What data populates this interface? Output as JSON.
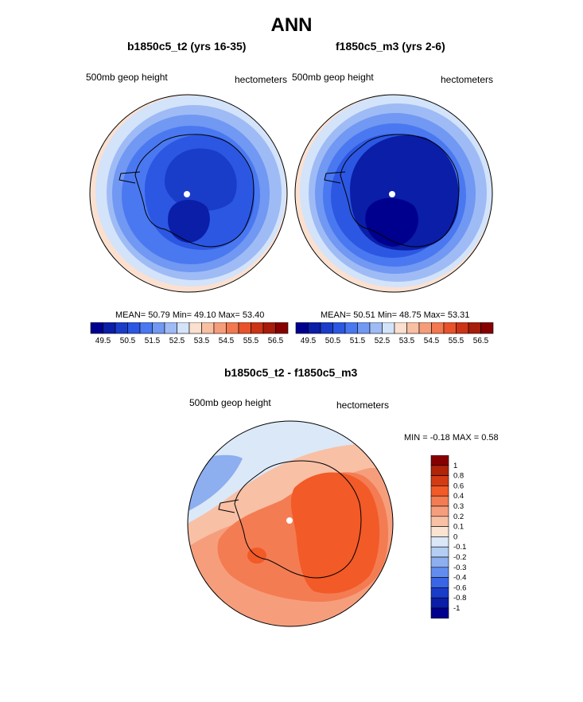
{
  "page": {
    "title": "ANN"
  },
  "panels": [
    {
      "title": "b1850c5_t2 (yrs 16-35)",
      "left_label": "500mb geop height",
      "right_label": "hectometers",
      "stats": "MEAN=  50.79  Min=  49.10  Max=  53.40",
      "colorbar": {
        "ticks": [
          "49.5",
          "50.5",
          "51.5",
          "52.5",
          "53.5",
          "54.5",
          "55.5",
          "56.5"
        ],
        "colors": [
          "#00008f",
          "#0a1ea8",
          "#1a3dc9",
          "#2b57e3",
          "#4a78f0",
          "#7198f2",
          "#9fbbf5",
          "#d3e3fa",
          "#fbe0d0",
          "#f8bfa3",
          "#f59d7b",
          "#f2784f",
          "#e8532c",
          "#cc3416",
          "#a81c0a",
          "#870000"
        ]
      }
    },
    {
      "title": "f1850c5_m3 (yrs 2-6)",
      "left_label": "500mb geop height",
      "right_label": "hectometers",
      "stats": "MEAN=  50.51  Min=  48.75  Max=  53.31",
      "colorbar": {
        "ticks": [
          "49.5",
          "50.5",
          "51.5",
          "52.5",
          "53.5",
          "54.5",
          "55.5",
          "56.5"
        ],
        "colors": [
          "#00008f",
          "#0a1ea8",
          "#1a3dc9",
          "#2b57e3",
          "#4a78f0",
          "#7198f2",
          "#9fbbf5",
          "#d3e3fa",
          "#fbe0d0",
          "#f8bfa3",
          "#f59d7b",
          "#f2784f",
          "#e8532c",
          "#cc3416",
          "#a81c0a",
          "#870000"
        ]
      }
    }
  ],
  "difference": {
    "title": "b1850c5_t2 - f1850c5_m3",
    "left_label": "500mb geop height",
    "right_label": "hectometers",
    "minmax": "MIN =  -0.18 MAX =   0.58",
    "colorbar": {
      "ticks": [
        "1",
        "0.8",
        "0.6",
        "0.4",
        "0.3",
        "0.2",
        "0.1",
        "0",
        "-0.1",
        "-0.2",
        "-0.3",
        "-0.4",
        "-0.6",
        "-0.8",
        "-1"
      ],
      "colors": [
        "#870000",
        "#b0240a",
        "#d33b14",
        "#f25a27",
        "#f47c52",
        "#f69e7c",
        "#f8c0a5",
        "#fbe3d2",
        "#dbe8f8",
        "#b4cdf3",
        "#8daeef",
        "#628df0",
        "#3a66e6",
        "#1a3dc9",
        "#0a1ea8",
        "#00008f"
      ]
    }
  },
  "map_palette": {
    "bg_light": "#d3e3fa",
    "ring1": "#9fbbf5",
    "ring2": "#7198f2",
    "ring3": "#4a78f0",
    "ring4": "#2b57e3",
    "ring5": "#1a3dc9",
    "ring6": "#0a1ea8",
    "core": "#00008f",
    "edge_warm": "#fbe0d0"
  }
}
